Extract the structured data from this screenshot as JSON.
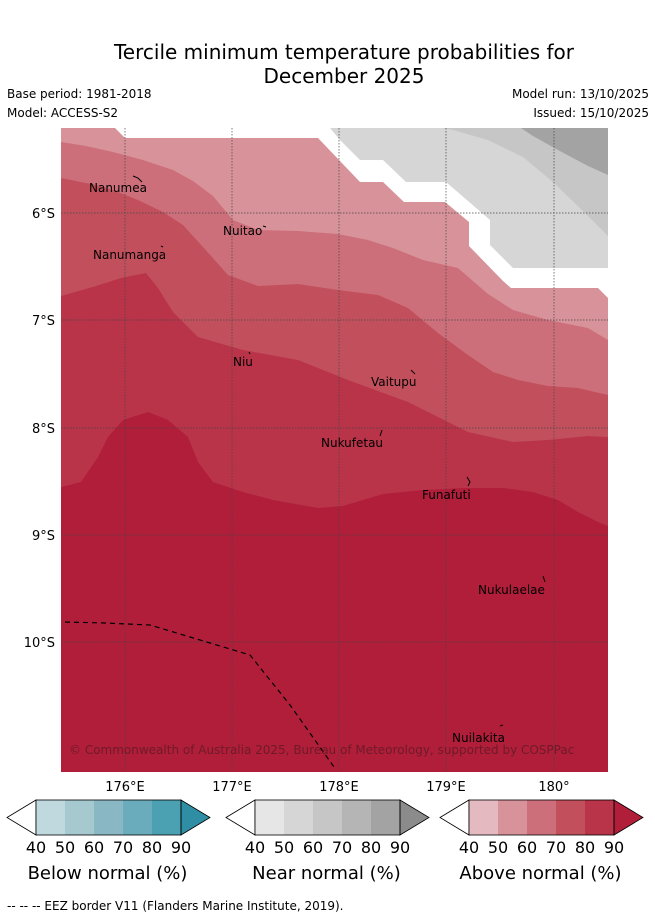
{
  "title_line1": "Tercile minimum temperature probabilities for",
  "title_line2": "December 2025",
  "base_period": "Base period: 1981-2018",
  "model": "Model: ACCESS-S2",
  "model_run": "Model run: 13/10/2025",
  "issued": "Issued: 15/10/2025",
  "map": {
    "lon_ticks": [
      "176°E",
      "177°E",
      "178°E",
      "179°E",
      "180°"
    ],
    "lat_ticks": [
      "6°S",
      "7°S",
      "8°S",
      "9°S",
      "10°S"
    ],
    "places": [
      {
        "name": "Nanumea"
      },
      {
        "name": "Nuitao"
      },
      {
        "name": "Nanumanga"
      },
      {
        "name": "Niu"
      },
      {
        "name": "Vaitupu"
      },
      {
        "name": "Nukufetau"
      },
      {
        "name": "Funafuti"
      },
      {
        "name": "Nukulaelae"
      },
      {
        "name": "Nuilakita"
      }
    ],
    "copyright": "© Commonwealth of Australia 2025, Bureau of Meteorology, supported by COSPPac"
  },
  "colorbars": [
    {
      "label": "Below normal (%)",
      "ticks": [
        "40",
        "50",
        "60",
        "70",
        "80",
        "90"
      ],
      "colors": [
        "#ffffff",
        "#bfd9df",
        "#a5c9cf",
        "#89b8c4",
        "#6aacbb",
        "#4ba1b2",
        "#2f8ea3"
      ]
    },
    {
      "label": "Near normal (%)",
      "ticks": [
        "40",
        "50",
        "60",
        "70",
        "80",
        "90"
      ],
      "colors": [
        "#ffffff",
        "#e6e6e6",
        "#d6d6d6",
        "#c6c6c6",
        "#b5b5b5",
        "#a3a3a3",
        "#8b8b8b"
      ]
    },
    {
      "label": "Above normal (%)",
      "ticks": [
        "40",
        "50",
        "60",
        "70",
        "80",
        "90"
      ],
      "colors": [
        "#ffffff",
        "#e5b9c0",
        "#d8939a",
        "#cd6f7a",
        "#c2505c",
        "#b93449",
        "#b01e3a"
      ]
    }
  ],
  "eez_note": "--  --  -- EEZ border V11 (Flanders Marine Institute, 2019)."
}
